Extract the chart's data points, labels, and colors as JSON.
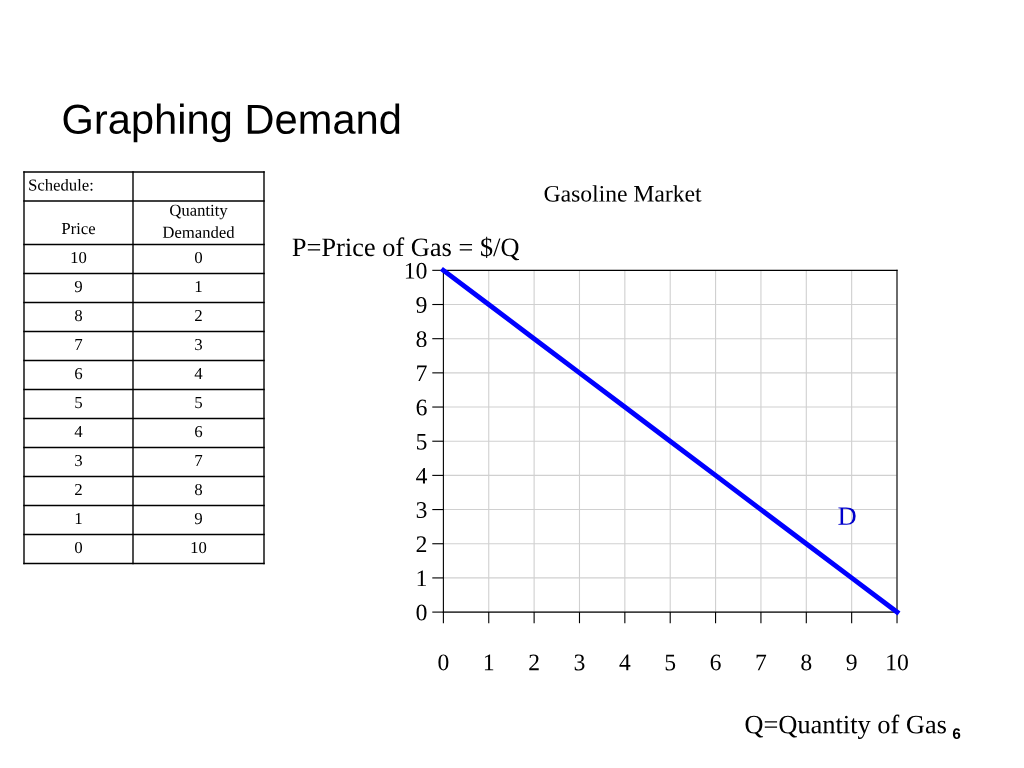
{
  "chart_data": {
    "type": "line",
    "title": "Graphing Demand",
    "subtitle": "Gasoline Market",
    "xlabel": "Q=Quantity of Gas",
    "ylabel": "P=Price of Gas = $/Q",
    "x": [
      0,
      1,
      2,
      3,
      4,
      5,
      6,
      7,
      8,
      9,
      10
    ],
    "series": [
      {
        "color": "#0000ff",
        "values": [
          10,
          9,
          8,
          7,
          6,
          5,
          4,
          3,
          2,
          1,
          0
        ]
      }
    ],
    "xlim": [
      0,
      10
    ],
    "ylim": [
      0,
      10
    ],
    "xticks": [
      0,
      1,
      2,
      3,
      4,
      5,
      6,
      7,
      8,
      9,
      10
    ],
    "yticks": [
      0,
      1,
      2,
      3,
      4,
      5,
      6,
      7,
      8,
      9,
      10
    ],
    "grid": true,
    "marker": "none",
    "line_style": "solid",
    "annotations": [
      "Schedule:",
      "Price",
      "Quantity\nDemanded",
      "10",
      "0",
      "9",
      "1",
      "8",
      "2",
      "7",
      "3",
      "6",
      "4",
      "5",
      "5",
      "4",
      "6",
      "3",
      "7",
      "2",
      "8",
      "1",
      "9",
      "0",
      "10",
      "D",
      "6"
    ]
  }
}
